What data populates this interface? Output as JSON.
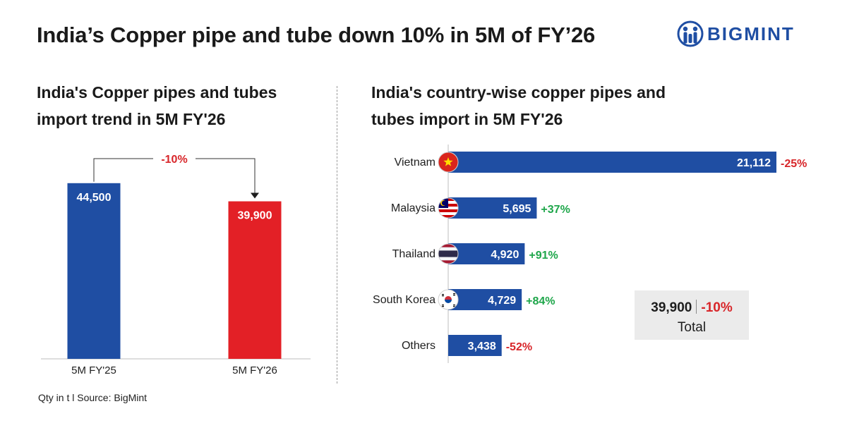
{
  "header": {
    "title": "India’s Copper pipe and tube down 10% in 5M of FY’26",
    "logo_text": "BIGMINT"
  },
  "left_panel": {
    "title": "India's Copper pipes and tubes import trend in 5M FY'26"
  },
  "right_panel": {
    "title": "India's country-wise copper pipes and tubes import in 5M FY'26"
  },
  "total": {
    "value": "39,900",
    "change": "-10%",
    "label": "Total"
  },
  "footer": {
    "note": "Qty in t  l  Source: BigMint"
  },
  "colors": {
    "blue": "#1f4ea3",
    "red": "#e32026",
    "positive": "#1ea64a",
    "negative": "#d8262a",
    "logo": "#1f4ea3"
  },
  "chart_data": [
    {
      "type": "bar",
      "categories": [
        "5M FY'25",
        "5M FY'26"
      ],
      "values": [
        44500,
        39900
      ],
      "value_labels": [
        "44,500",
        "39,900"
      ],
      "bar_colors": [
        "#1f4ea3",
        "#e32026"
      ],
      "change_label": "-10%",
      "ylim": [
        0,
        80000
      ]
    },
    {
      "type": "bar",
      "orientation": "horizontal",
      "categories": [
        "Vietnam",
        "Malaysia",
        "Thailand",
        "South Korea",
        "Others"
      ],
      "flag_icons": [
        "vietnam-flag-icon",
        "malaysia-flag-icon",
        "thailand-flag-icon",
        "south-korea-flag-icon",
        ""
      ],
      "values": [
        21112,
        5695,
        4920,
        4729,
        3438
      ],
      "value_labels": [
        "21,112",
        "5,695",
        "4,920",
        "4,729",
        "3,438"
      ],
      "changes": [
        "-25%",
        "+37%",
        "+91%",
        "+84%",
        "-52%"
      ],
      "bar_color": "#1f4ea3",
      "xlim": [
        0,
        21112
      ]
    }
  ]
}
